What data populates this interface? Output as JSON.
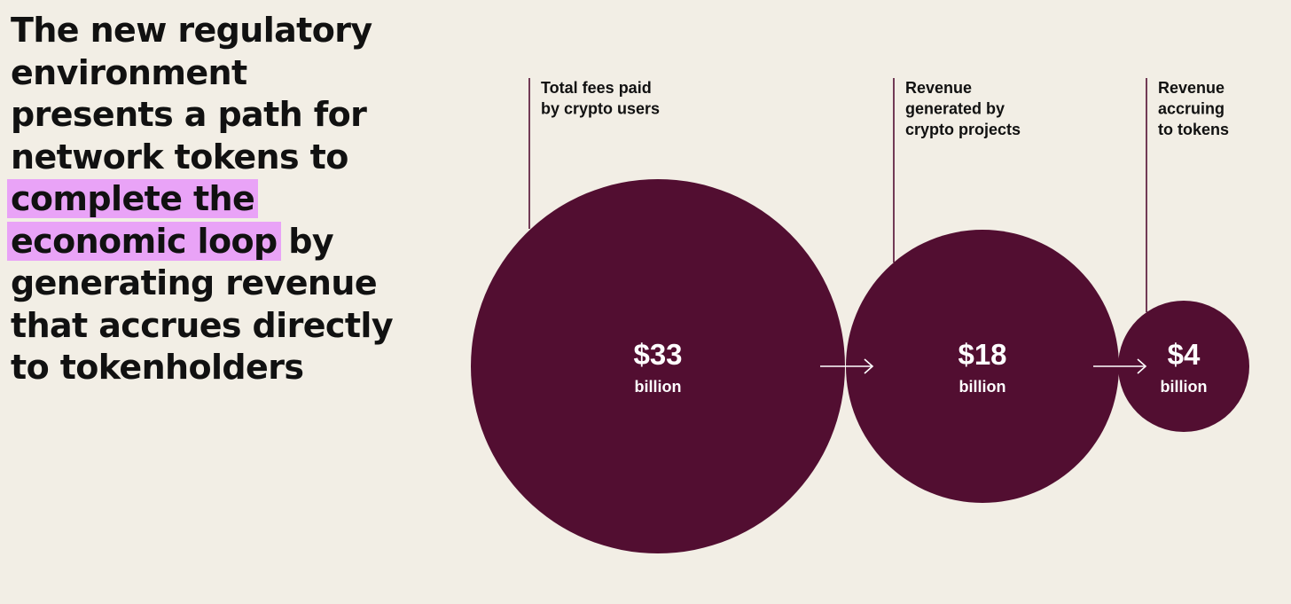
{
  "headline": {
    "before": "The new regulatory environment presents a path for network tokens to ",
    "highlight": "complete the economic loop",
    "after": " by generating revenue that accrues directly to tokenholders"
  },
  "colors": {
    "background": "#f2eee5",
    "circle": "#520e31",
    "highlight": "#e9a3f7",
    "text": "#111111",
    "value_text": "#ffffff"
  },
  "stages": [
    {
      "label_lines": [
        "Total fees paid",
        "by crypto users"
      ],
      "value": "$33",
      "unit": "billion",
      "amount_billion": 33
    },
    {
      "label_lines": [
        "Revenue",
        "generated by",
        "crypto projects"
      ],
      "value": "$18",
      "unit": "billion",
      "amount_billion": 18
    },
    {
      "label_lines": [
        "Revenue",
        "accruing",
        "to tokens"
      ],
      "value": "$4",
      "unit": "billion",
      "amount_billion": 4
    }
  ]
}
